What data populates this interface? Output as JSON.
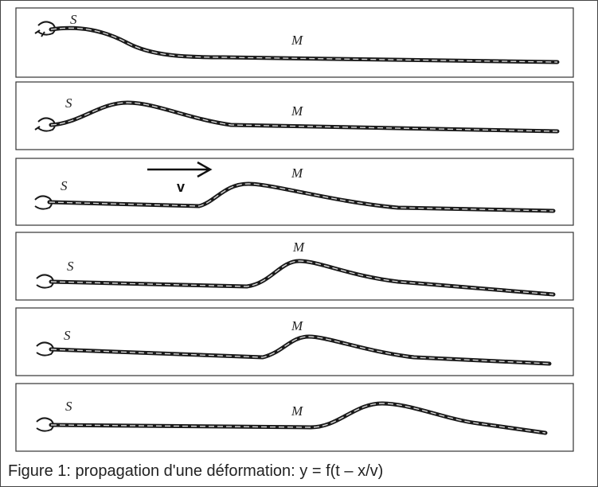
{
  "panels": [
    {
      "source_label": "S",
      "point_label": "M"
    },
    {
      "source_label": "S",
      "point_label": "M"
    },
    {
      "source_label": "S",
      "point_label": "M",
      "velocity_label": "v"
    },
    {
      "source_label": "S",
      "point_label": "M"
    },
    {
      "source_label": "S",
      "point_label": "M"
    },
    {
      "source_label": "S",
      "point_label": "M"
    }
  ],
  "caption": "Figure 1: propagation d'une déformation: y = f(t – x/v)"
}
